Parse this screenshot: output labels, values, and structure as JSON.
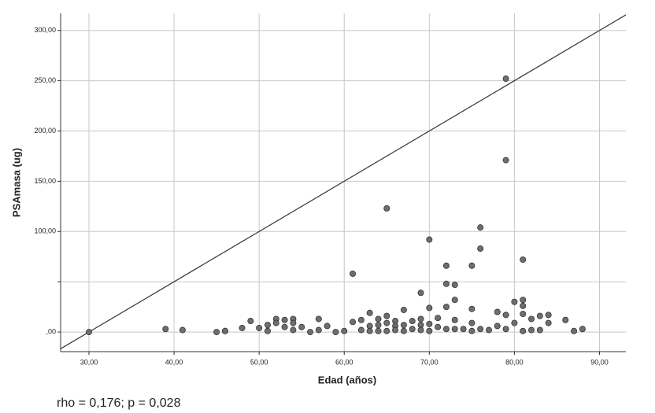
{
  "chart_data": {
    "type": "scatter",
    "x_label": "Edad (años)",
    "y_label": "PSAmasa (ug)",
    "footnote": "rho = 0,176; p = 0,028",
    "color": "#6e6e6e",
    "xlim": [
      26.67,
      93.1
    ],
    "ylim": [
      -19.5,
      317
    ],
    "xticks": [
      {
        "value": 30,
        "label": "30,00"
      },
      {
        "value": 40,
        "label": "40,00"
      },
      {
        "value": 50,
        "label": "50,00"
      },
      {
        "value": 60,
        "label": "60,00"
      },
      {
        "value": 70,
        "label": "70,00"
      },
      {
        "value": 80,
        "label": "80,00"
      },
      {
        "value": 90,
        "label": "90,00"
      }
    ],
    "yticks": [
      {
        "value": 0,
        "label": ",00"
      },
      {
        "value": 50,
        "label": null
      },
      {
        "value": 100,
        "label": "100,00"
      },
      {
        "value": 150,
        "label": "150,00"
      },
      {
        "value": 200,
        "label": "200,00"
      },
      {
        "value": 250,
        "label": "250,00"
      },
      {
        "value": 300,
        "label": "300,00"
      }
    ],
    "grid": true,
    "reference_line": {
      "x": [
        30,
        80
      ],
      "y": [
        0,
        250
      ]
    },
    "x": [
      30,
      39,
      41,
      45,
      46,
      46,
      48,
      49,
      50,
      51,
      51,
      52,
      52,
      53,
      53,
      54,
      54,
      54,
      55,
      56,
      57,
      57,
      58,
      59,
      60,
      61,
      61,
      62,
      62,
      63,
      63,
      63,
      64,
      64,
      64,
      65,
      65,
      65,
      65,
      66,
      66,
      66,
      67,
      67,
      67,
      68,
      68,
      69,
      69,
      69,
      69,
      70,
      70,
      70,
      70,
      71,
      71,
      72,
      72,
      72,
      72,
      73,
      73,
      73,
      73,
      74,
      75,
      75,
      75,
      75,
      76,
      76,
      76,
      77,
      78,
      78,
      79,
      79,
      79,
      79,
      80,
      80,
      81,
      81,
      81,
      81,
      81,
      82,
      82,
      83,
      83,
      84,
      84,
      86,
      87,
      88
    ],
    "values": [
      0,
      3,
      2,
      0,
      1,
      1,
      4,
      11,
      4,
      1,
      7,
      13,
      9,
      5,
      12,
      13,
      9,
      2,
      5,
      0,
      13,
      2,
      6,
      0,
      1,
      10,
      58,
      12,
      2,
      19,
      6,
      1,
      13,
      7,
      1,
      16,
      123,
      9,
      1,
      11,
      6,
      2,
      22,
      7,
      1,
      11,
      3,
      39,
      13,
      7,
      2,
      92,
      24,
      8,
      1,
      14,
      5,
      66,
      48,
      25,
      3,
      47,
      32,
      12,
      3,
      3,
      66,
      23,
      9,
      1,
      104,
      83,
      3,
      2,
      20,
      6,
      252,
      171,
      17,
      3,
      30,
      9,
      72,
      32,
      26,
      18,
      1,
      13,
      2,
      16,
      2,
      17,
      9,
      12,
      1,
      3
    ]
  }
}
